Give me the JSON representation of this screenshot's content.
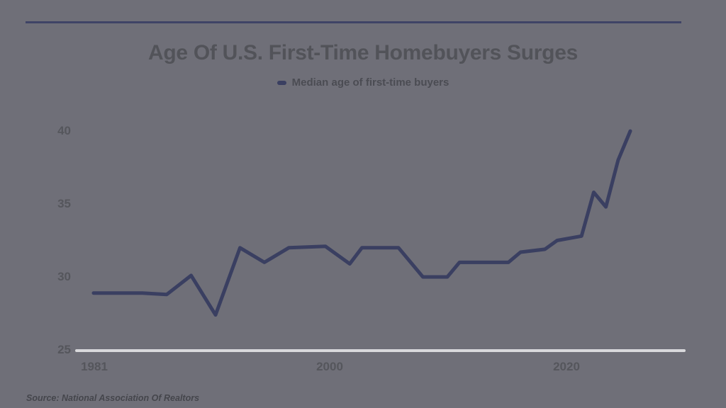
{
  "page": {
    "title": "Age Of U.S. First-Time Homebuyers Surges",
    "source": "Source: National Association Of Realtors"
  },
  "colors": {
    "background": "#6f6f78",
    "line": "#3a3f61",
    "rule_top": "#3f4466",
    "rule_bottom": "#3a3f60",
    "baseline": "#d9d9dc",
    "title_text": "#525359",
    "tick_text": "#55565c"
  },
  "chart_data": {
    "type": "line",
    "title": "Age Of U.S. First-Time Homebuyers Surges",
    "xlabel": "",
    "ylabel": "",
    "grid": false,
    "legend_position": "top-center",
    "xlim": [
      1981,
      2025
    ],
    "ylim": [
      25,
      40
    ],
    "yticks": [
      40,
      35,
      30,
      25
    ],
    "xticks": [
      "1981",
      "2000",
      "2020"
    ],
    "series": [
      {
        "name": "Median age of first-time buyers",
        "points": [
          [
            1981,
            28.9
          ],
          [
            1985,
            28.9
          ],
          [
            1987,
            28.8
          ],
          [
            1989,
            30.1
          ],
          [
            1991,
            27.4
          ],
          [
            1993,
            32.0
          ],
          [
            1995,
            31.0
          ],
          [
            1997,
            32.0
          ],
          [
            2000,
            32.1
          ],
          [
            2002,
            30.9
          ],
          [
            2003,
            32.0
          ],
          [
            2006,
            32.0
          ],
          [
            2008,
            30.0
          ],
          [
            2010,
            30.0
          ],
          [
            2011,
            31.0
          ],
          [
            2015,
            31.0
          ],
          [
            2016,
            31.7
          ],
          [
            2018,
            31.9
          ],
          [
            2019,
            32.5
          ],
          [
            2021,
            32.8
          ],
          [
            2022,
            35.8
          ],
          [
            2023,
            34.8
          ],
          [
            2024,
            38.0
          ],
          [
            2025,
            40.0
          ]
        ]
      }
    ],
    "source": "Source: National Association Of Realtors"
  }
}
